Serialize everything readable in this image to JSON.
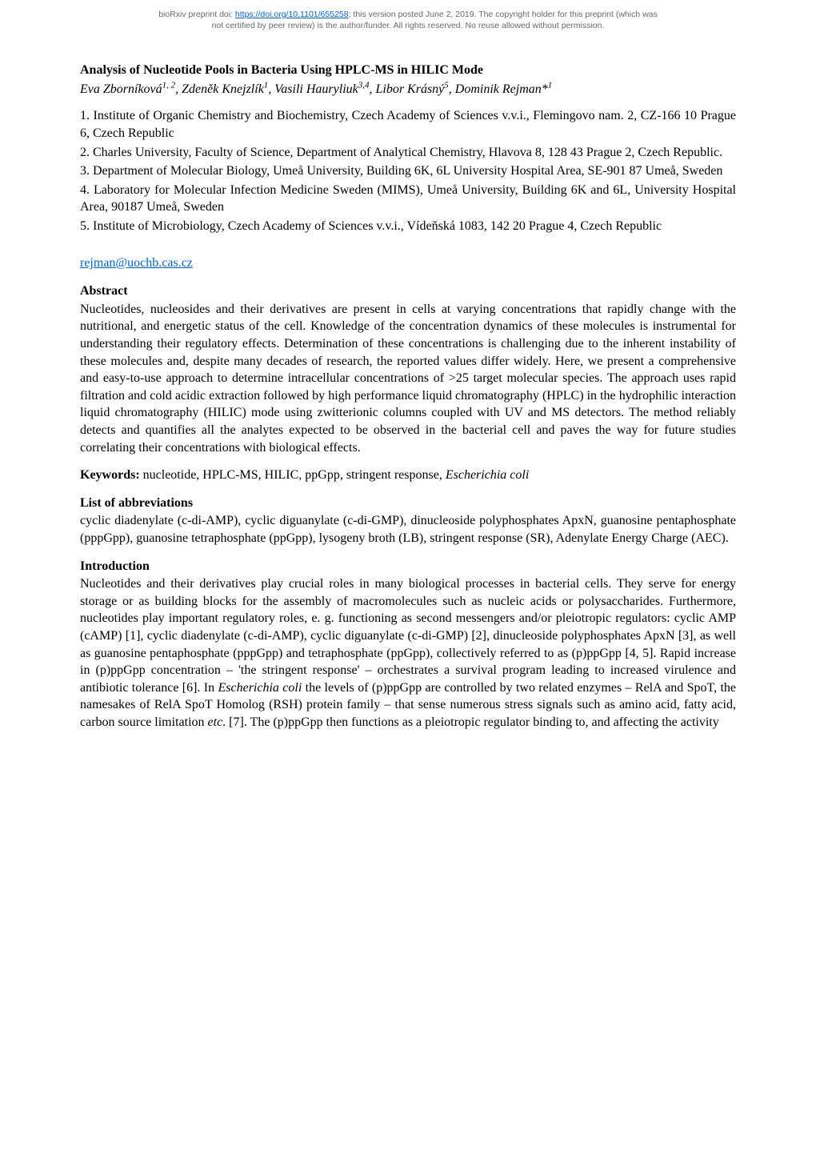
{
  "preprint": {
    "line1_prefix": "bioRxiv preprint doi: ",
    "doi_url": "https://doi.org/10.1101/655258",
    "line1_suffix": "; this version posted June 2, 2019. The copyright holder for this preprint (which was",
    "line2": "not certified by peer review) is the author/funder. All rights reserved. No reuse allowed without permission."
  },
  "title": "Analysis of Nucleotide Pools in Bacteria Using HPLC-MS in HILIC Mode",
  "authors_html": "Eva Zborníková<sup>1, 2</sup>, Zdeněk Knejzlík<sup>1</sup>, Vasili Hauryliuk<sup>3,4</sup>, Libor Krásný<sup>5</sup>, Dominik Rejman*<sup>1</sup>",
  "affiliations": [
    "1. Institute of Organic Chemistry and Biochemistry, Czech Academy of Sciences v.v.i., Flemingovo nam. 2, CZ-166 10 Prague 6, Czech Republic",
    "2. Charles University, Faculty of Science, Department of Analytical Chemistry, Hlavova 8, 128 43 Prague 2, Czech Republic.",
    "3. Department of Molecular Biology, Umeå University, Building 6K, 6L University Hospital Area, SE-901 87 Umeå, Sweden",
    "4. Laboratory for Molecular Infection Medicine Sweden (MIMS), Umeå University, Building 6K and 6L, University Hospital Area, 90187 Umeå, Sweden",
    "5. Institute of Microbiology, Czech Academy of Sciences v.v.i., Vídeňská 1083, 142 20 Prague 4, Czech Republic"
  ],
  "email": "rejman@uochb.cas.cz",
  "abstract": {
    "heading": "Abstract",
    "body": "Nucleotides, nucleosides and their derivatives are present in cells at varying concentrations that rapidly change with the nutritional, and energetic status of the cell. Knowledge of the concentration dynamics of these molecules is instrumental for understanding their regulatory effects. Determination of these concentrations is challenging due to the inherent instability of these molecules and, despite many decades of research, the reported values differ widely. Here, we present a comprehensive and easy-to-use approach to determine intracellular concentrations of >25 target molecular species. The approach uses rapid filtration and cold acidic extraction followed by high performance liquid chromatography (HPLC) in the hydrophilic interaction liquid chromatography (HILIC) mode using zwitterionic columns coupled with UV and MS detectors. The method reliably detects and quantifies all the analytes expected to be observed in the bacterial cell and paves the way for future studies correlating their concentrations with biological effects."
  },
  "keywords": {
    "label": "Keywords: ",
    "text_plain": "nucleotide, HPLC-MS, HILIC, ppGpp, stringent response, ",
    "text_italic": "Escherichia coli"
  },
  "abbreviations": {
    "heading": "List of abbreviations",
    "body": "cyclic diadenylate (c-di-AMP), cyclic diguanylate (c-di-GMP), dinucleoside polyphosphates ApxN, guanosine pentaphosphate (pppGpp), guanosine tetraphosphate (ppGpp), lysogeny broth (LB), stringent response (SR), Adenylate Energy Charge (AEC)."
  },
  "introduction": {
    "heading": "Introduction",
    "body_html": "Nucleotides and their derivatives play crucial roles in many biological processes in bacterial cells. They serve for energy storage or as building blocks for the assembly of macromolecules such as nucleic acids or polysaccharides. Furthermore, nucleotides play important regulatory roles, e. g. functioning as second messengers and/or pleiotropic regulators: cyclic AMP (cAMP) [1], cyclic diadenylate (c-di-AMP), cyclic diguanylate (c-di-GMP) [2], dinucleoside polyphosphates ApxN [3], as well as guanosine pentaphosphate (pppGpp) and tetraphosphate (ppGpp), collectively referred to as (p)ppGpp [4, 5].  Rapid increase in (p)ppGpp concentration – 'the stringent response' – orchestrates a survival program leading to increased virulence and antibiotic tolerance [6]. In <span class=\"italic\">Escherichia coli</span> the levels of (p)ppGpp are controlled by two related enzymes – RelA and SpoT, the namesakes of RelA SpoT Homolog (RSH) protein family  – that sense numerous stress signals such as amino acid, fatty acid, carbon source limitation <span class=\"italic\">etc</span>. [7]. The (p)ppGpp then functions as a pleiotropic regulator binding to, and affecting the activity"
  }
}
